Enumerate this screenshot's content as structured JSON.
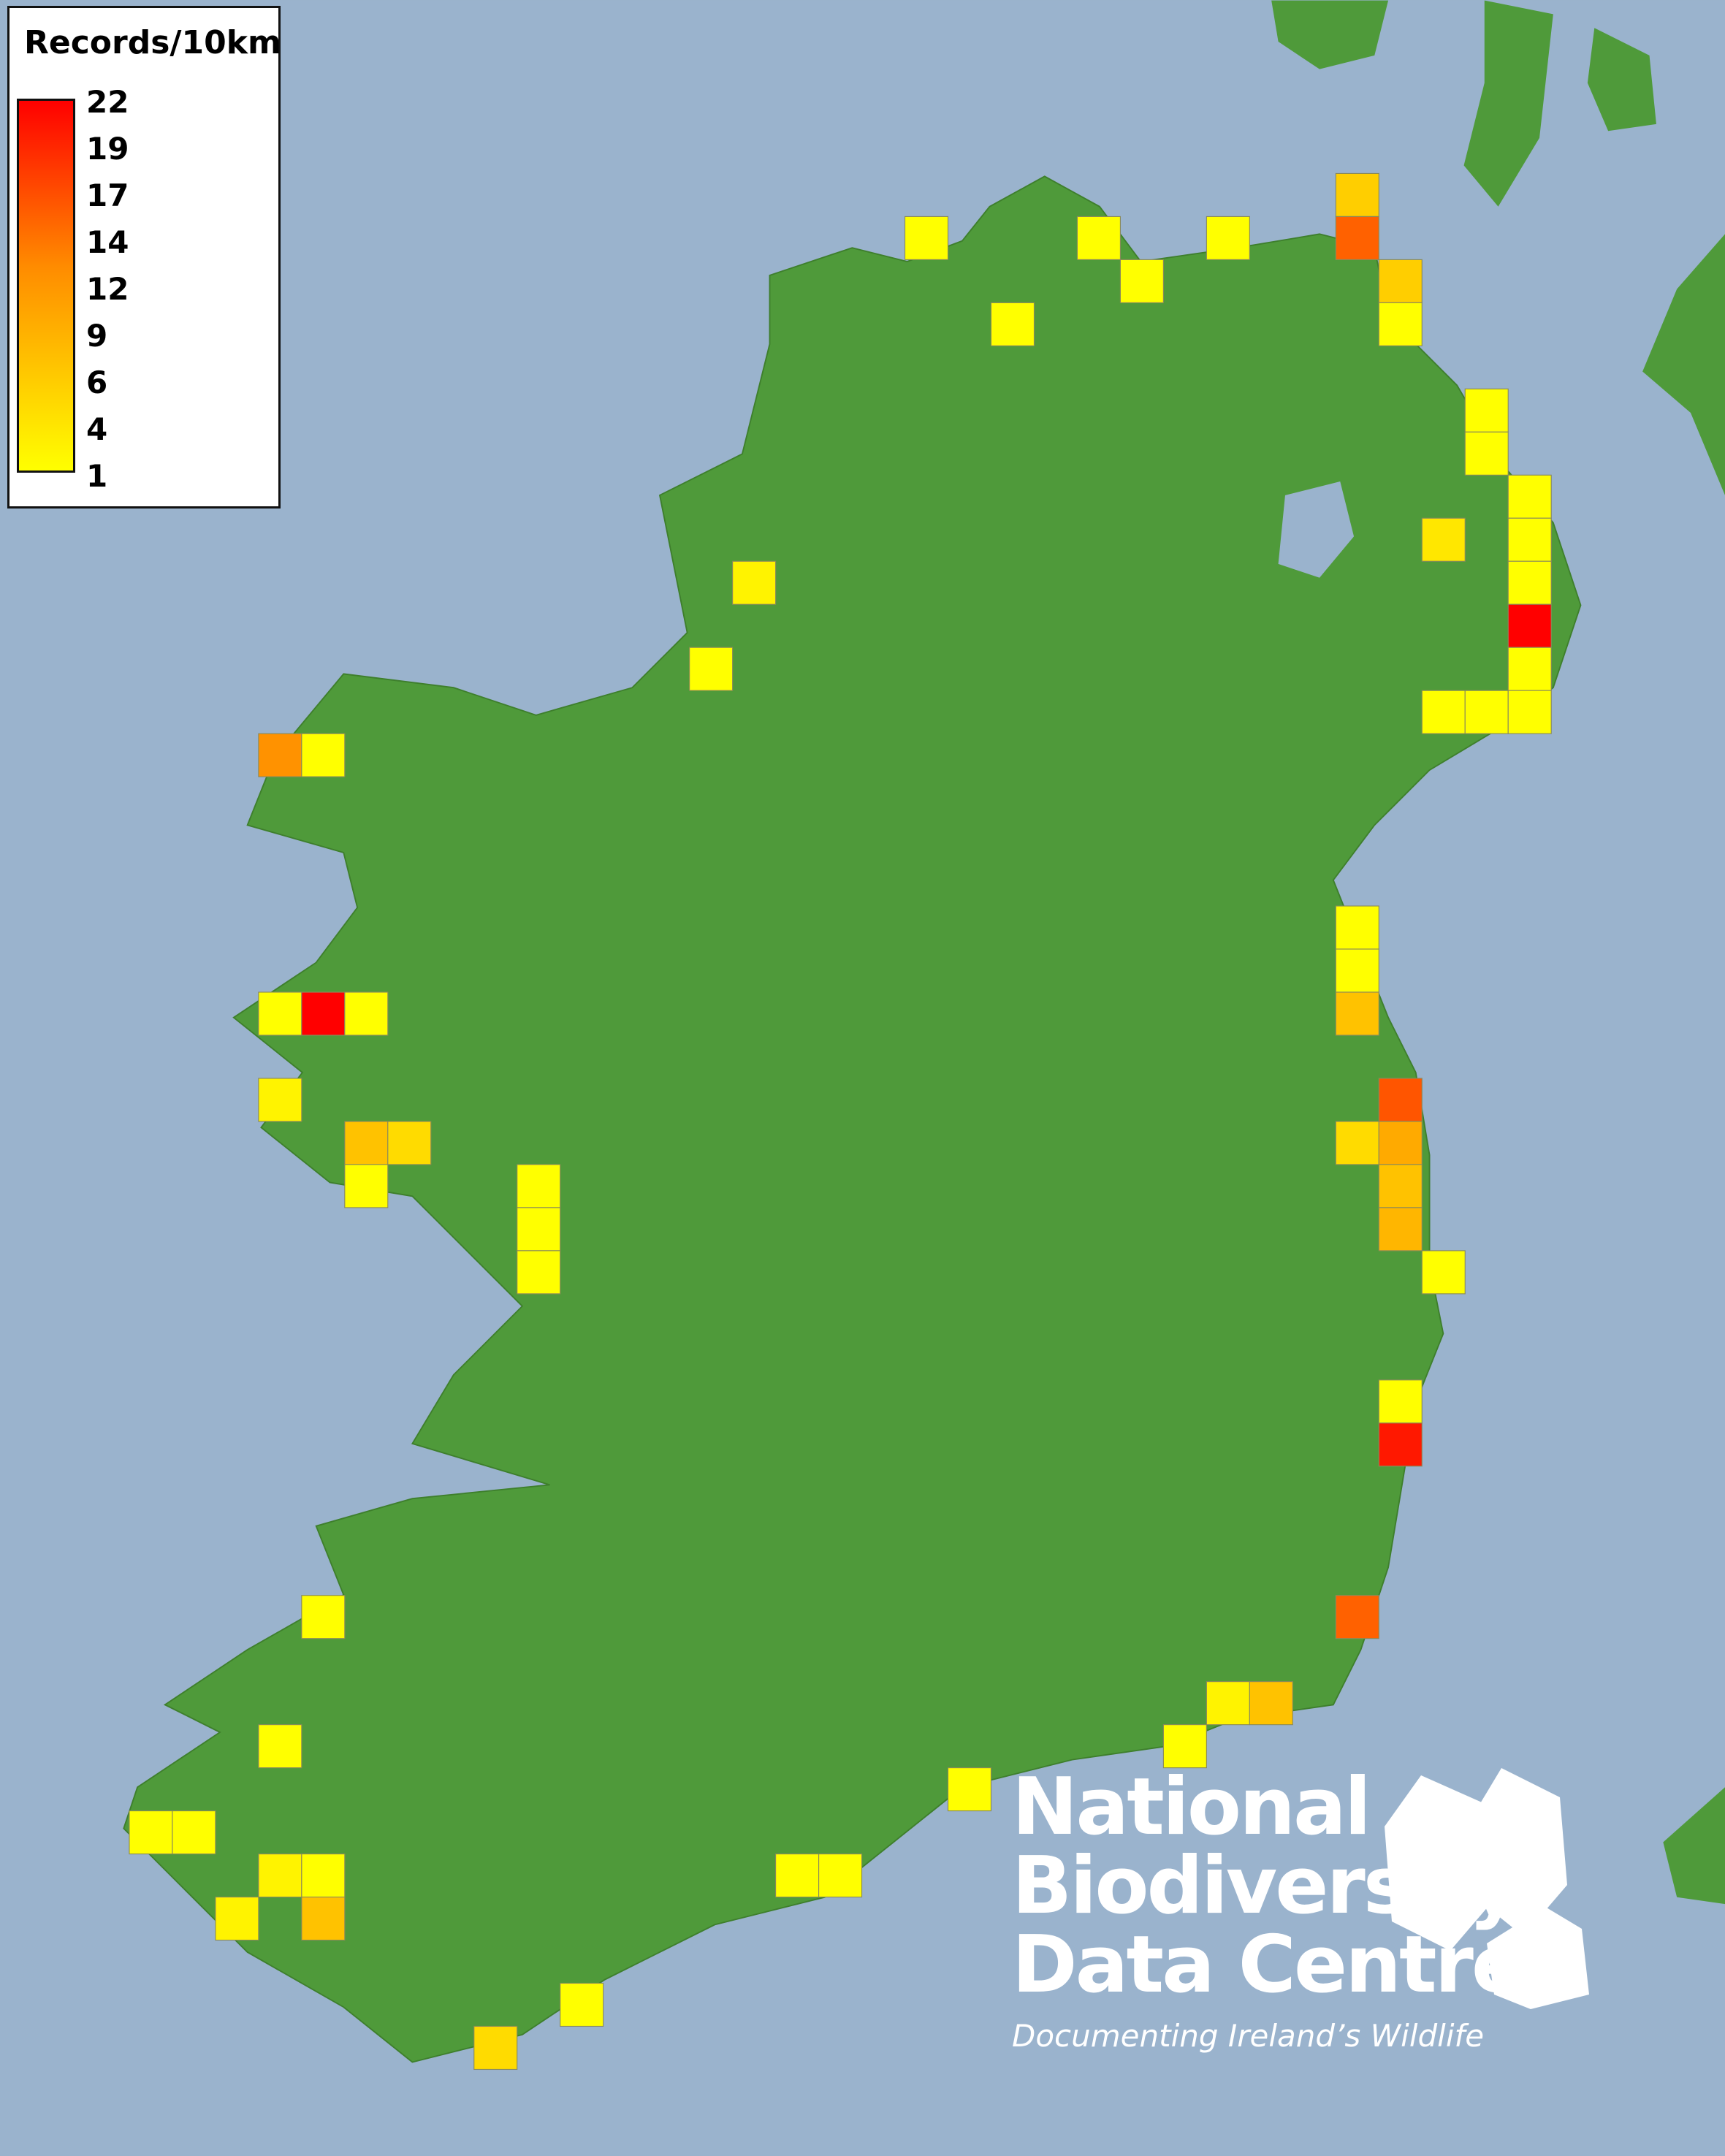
{
  "legend": {
    "title": "Records/10km",
    "ticks": [
      "22",
      "19",
      "17",
      "14",
      "12",
      "9",
      "6",
      "4",
      "1"
    ],
    "min": 1,
    "max": 22,
    "colors": {
      "low": "#ffff00",
      "mid": "#ff8c00",
      "high": "#ff0000"
    }
  },
  "map": {
    "sea_color": "#9ab3cd",
    "land_color": "#4f9a3a",
    "grid_unit": "10km",
    "squares": [
      {
        "e": 310,
        "n": 450,
        "v": 5
      },
      {
        "e": 210,
        "n": 440,
        "v": 1
      },
      {
        "e": 250,
        "n": 440,
        "v": 1
      },
      {
        "e": 280,
        "n": 440,
        "v": 1
      },
      {
        "e": 310,
        "n": 440,
        "v": 14
      },
      {
        "e": 260,
        "n": 430,
        "v": 1
      },
      {
        "e": 320,
        "n": 430,
        "v": 5
      },
      {
        "e": 230,
        "n": 420,
        "v": 1
      },
      {
        "e": 320,
        "n": 420,
        "v": 1
      },
      {
        "e": 340,
        "n": 400,
        "v": 1
      },
      {
        "e": 340,
        "n": 390,
        "v": 1
      },
      {
        "e": 350,
        "n": 380,
        "v": 1
      },
      {
        "e": 350,
        "n": 370,
        "v": 1
      },
      {
        "e": 330,
        "n": 370,
        "v": 3
      },
      {
        "e": 350,
        "n": 360,
        "v": 1
      },
      {
        "e": 170,
        "n": 360,
        "v": 2
      },
      {
        "e": 350,
        "n": 350,
        "v": 22
      },
      {
        "e": 350,
        "n": 340,
        "v": 1
      },
      {
        "e": 160,
        "n": 340,
        "v": 1
      },
      {
        "e": 330,
        "n": 330,
        "v": 1
      },
      {
        "e": 340,
        "n": 330,
        "v": 1
      },
      {
        "e": 350,
        "n": 330,
        "v": 1
      },
      {
        "e": 60,
        "n": 320,
        "v": 10
      },
      {
        "e": 70,
        "n": 320,
        "v": 1
      },
      {
        "e": 310,
        "n": 280,
        "v": 1
      },
      {
        "e": 310,
        "n": 270,
        "v": 1
      },
      {
        "e": 60,
        "n": 260,
        "v": 1
      },
      {
        "e": 70,
        "n": 260,
        "v": 22
      },
      {
        "e": 80,
        "n": 260,
        "v": 1
      },
      {
        "e": 310,
        "n": 260,
        "v": 6
      },
      {
        "e": 60,
        "n": 240,
        "v": 2
      },
      {
        "e": 320,
        "n": 240,
        "v": 15
      },
      {
        "e": 80,
        "n": 230,
        "v": 6
      },
      {
        "e": 90,
        "n": 230,
        "v": 4
      },
      {
        "e": 310,
        "n": 230,
        "v": 4
      },
      {
        "e": 320,
        "n": 230,
        "v": 8
      },
      {
        "e": 80,
        "n": 220,
        "v": 1
      },
      {
        "e": 120,
        "n": 220,
        "v": 1
      },
      {
        "e": 320,
        "n": 220,
        "v": 6
      },
      {
        "e": 120,
        "n": 210,
        "v": 1
      },
      {
        "e": 320,
        "n": 210,
        "v": 7
      },
      {
        "e": 120,
        "n": 200,
        "v": 1
      },
      {
        "e": 330,
        "n": 200,
        "v": 1
      },
      {
        "e": 320,
        "n": 170,
        "v": 1
      },
      {
        "e": 320,
        "n": 160,
        "v": 20
      },
      {
        "e": 70,
        "n": 120,
        "v": 1
      },
      {
        "e": 310,
        "n": 120,
        "v": 14
      },
      {
        "e": 280,
        "n": 100,
        "v": 2
      },
      {
        "e": 290,
        "n": 100,
        "v": 6
      },
      {
        "e": 60,
        "n": 90,
        "v": 1
      },
      {
        "e": 270,
        "n": 90,
        "v": 1
      },
      {
        "e": 220,
        "n": 80,
        "v": 1
      },
      {
        "e": 30,
        "n": 70,
        "v": 1
      },
      {
        "e": 40,
        "n": 70,
        "v": 1
      },
      {
        "e": 60,
        "n": 60,
        "v": 2
      },
      {
        "e": 70,
        "n": 60,
        "v": 1
      },
      {
        "e": 180,
        "n": 60,
        "v": 1
      },
      {
        "e": 190,
        "n": 60,
        "v": 1
      },
      {
        "e": 50,
        "n": 50,
        "v": 2
      },
      {
        "e": 70,
        "n": 50,
        "v": 6
      },
      {
        "e": 130,
        "n": 30,
        "v": 1
      },
      {
        "e": 110,
        "n": 20,
        "v": 4
      }
    ]
  },
  "logo": {
    "lines": [
      "National",
      "Biodiversity",
      "Data Centre"
    ],
    "tagline": "Documenting Ireland’s Wildlife"
  }
}
